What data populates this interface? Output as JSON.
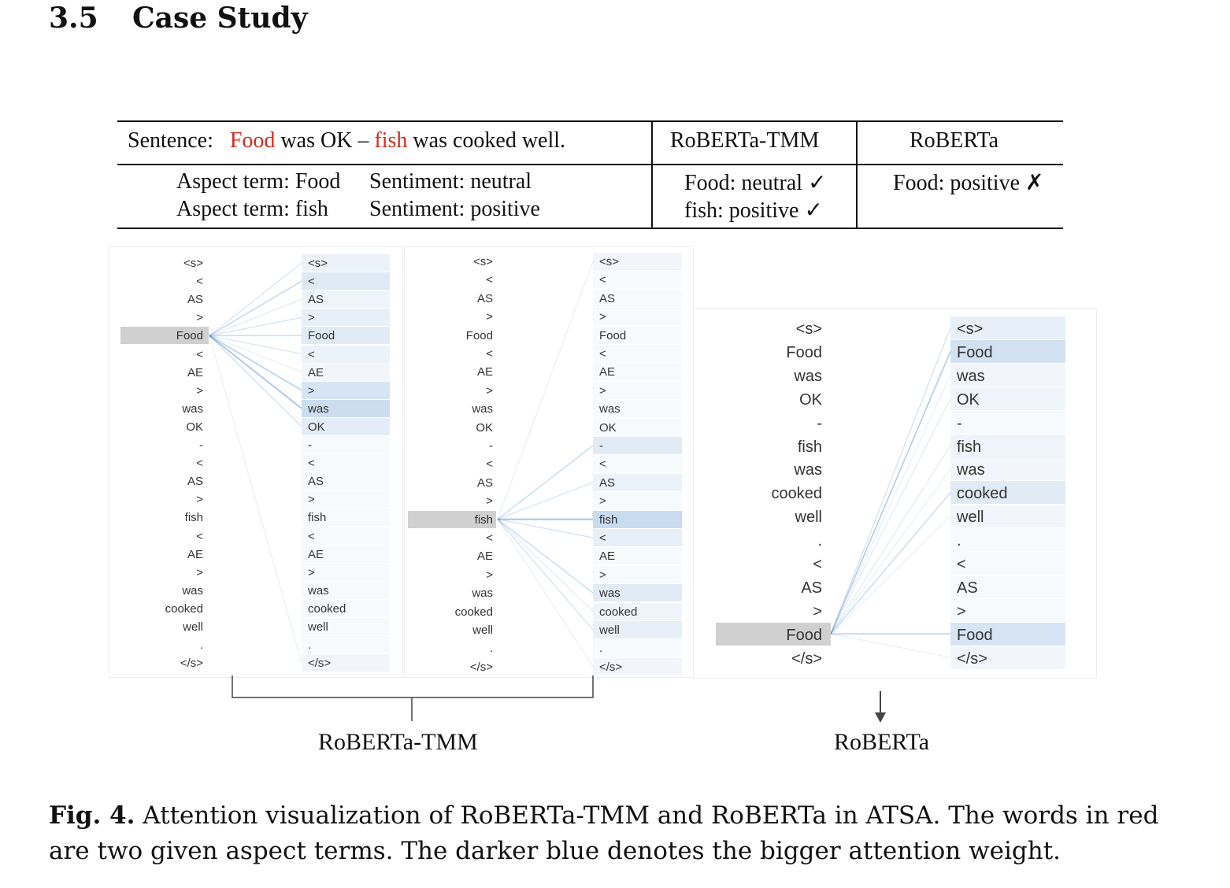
{
  "section": {
    "number": "3.5",
    "title": "Case Study"
  },
  "table": {
    "header": {
      "sentence_label": "Sentence:",
      "sentence_parts": [
        {
          "text": "Food",
          "red": true
        },
        {
          "text": " was OK – ",
          "red": false
        },
        {
          "text": "fish",
          "red": true
        },
        {
          "text": " was cooked well.",
          "red": false
        }
      ],
      "col2": "RoBERTa-TMM",
      "col3": "RoBERTa"
    },
    "rows": [
      {
        "aspect": "Aspect term: Food",
        "sentiment": "Sentiment:  neutral",
        "tmm": "Food:  neutral ✓",
        "roberta": "Food:  positive ✗"
      },
      {
        "aspect": "Aspect term: fish",
        "sentiment": "Sentiment:  positive",
        "tmm": "fish:    positive ✓",
        "roberta": ""
      }
    ]
  },
  "visualizations": {
    "tmm_tokens": [
      "<s>",
      "<",
      "AS",
      ">",
      "Food",
      "<",
      "AE",
      ">",
      "was",
      "OK",
      "-",
      "<",
      "AS",
      ">",
      "fish",
      "<",
      "AE",
      ">",
      "was",
      "cooked",
      "well",
      ".",
      "</s>"
    ],
    "roberta_tokens": [
      "<s>",
      "Food",
      "was",
      "OK",
      "-",
      "fish",
      "was",
      "cooked",
      "well",
      ".",
      "<",
      "AS",
      ">",
      "Food",
      "</s>"
    ],
    "panel1": {
      "query_index": 4,
      "weights": [
        0.15,
        0.35,
        0.1,
        0.2,
        0.3,
        0.15,
        0.05,
        0.45,
        0.6,
        0.25,
        0,
        0,
        0,
        0,
        0,
        0,
        0,
        0,
        0,
        0,
        0,
        0,
        0.05
      ]
    },
    "panel2": {
      "query_index": 14,
      "weights": [
        0.05,
        0,
        0,
        0,
        0,
        0,
        0,
        0,
        0,
        0,
        0.3,
        0,
        0.15,
        0,
        0.65,
        0.2,
        0,
        0,
        0.3,
        0.1,
        0.2,
        0,
        0.05
      ]
    },
    "panel3": {
      "query_index": 13,
      "weights": [
        0.2,
        0.5,
        0.05,
        0.1,
        0,
        0.1,
        0.05,
        0.3,
        0.05,
        0,
        0,
        0,
        0,
        0.45,
        0.05
      ]
    },
    "labels": {
      "tmm": "RoBERTa-TMM",
      "roberta": "RoBERTa"
    },
    "highlight_color": "#d0d0d0",
    "attention_color": "#3b7dc4"
  },
  "caption": {
    "label": "Fig. 4.",
    "text": " Attention visualization of RoBERTa-TMM and RoBERTa in ATSA. The words in red are two given aspect terms. The darker blue denotes the bigger attention weight."
  }
}
